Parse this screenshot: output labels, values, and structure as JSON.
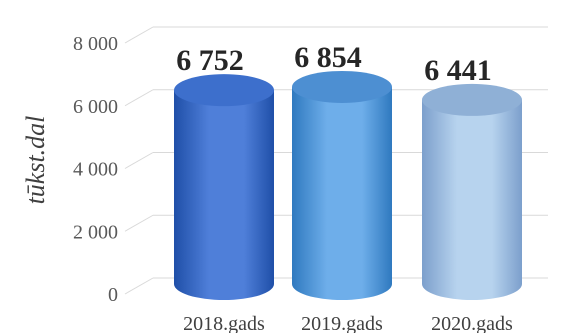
{
  "chart_data": {
    "type": "bar",
    "style": "3d-cylinder",
    "categories": [
      "2018.gads",
      "2019.gads",
      "2020.gads"
    ],
    "values": [
      6752,
      6854,
      6441
    ],
    "data_labels": [
      "6 752",
      "6 854",
      "6 441"
    ],
    "ylabel": "tūkst.dal",
    "xlabel": "",
    "title": "",
    "ylim": [
      0,
      8000
    ],
    "yticks": [
      0,
      2000,
      4000,
      6000,
      8000
    ],
    "ytick_labels": [
      "0",
      "2 000",
      "4 000",
      "6 000",
      "8 000"
    ],
    "grid": true,
    "legend": "none",
    "colors": [
      {
        "light": "#4f7fd9",
        "dark": "#1f4fa8",
        "top": "#3d6fcc"
      },
      {
        "light": "#6eaeea",
        "dark": "#2f79bf",
        "top": "#4d8fd2"
      },
      {
        "light": "#b7d3ee",
        "dark": "#7c9fcc",
        "top": "#8fb0d6"
      }
    ]
  }
}
